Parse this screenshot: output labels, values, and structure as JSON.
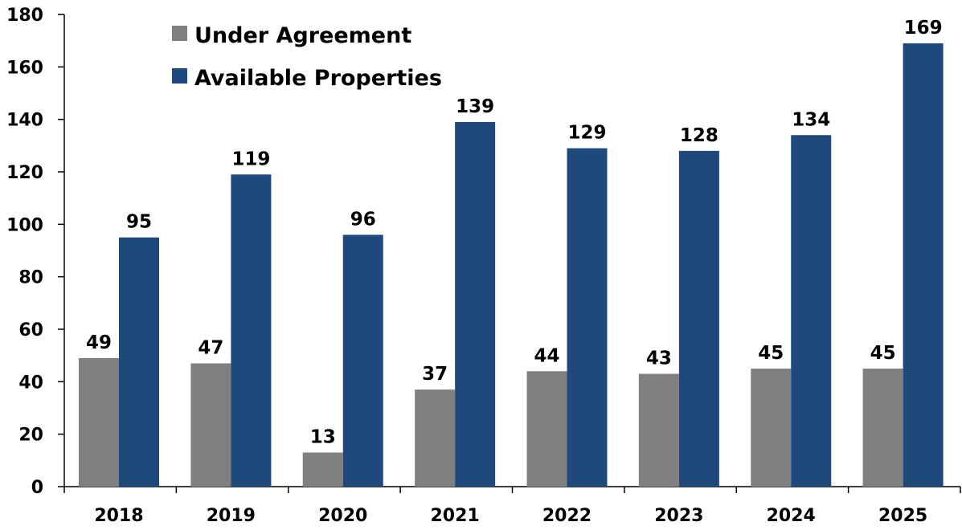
{
  "chart_data": {
    "type": "bar",
    "categories": [
      "2018",
      "2019",
      "2020",
      "2021",
      "2022",
      "2023",
      "2024",
      "2025"
    ],
    "series": [
      {
        "name": "Under Agreement",
        "color": "#808080",
        "values": [
          49,
          47,
          13,
          37,
          44,
          43,
          45,
          45
        ]
      },
      {
        "name": "Available Properties",
        "color": "#1f497d",
        "values": [
          95,
          119,
          96,
          139,
          129,
          128,
          134,
          169
        ]
      }
    ],
    "ylim": [
      0,
      180
    ],
    "yticks": [
      0,
      20,
      40,
      60,
      80,
      100,
      120,
      140,
      160,
      180
    ],
    "grid": false,
    "legend": "top-left"
  }
}
